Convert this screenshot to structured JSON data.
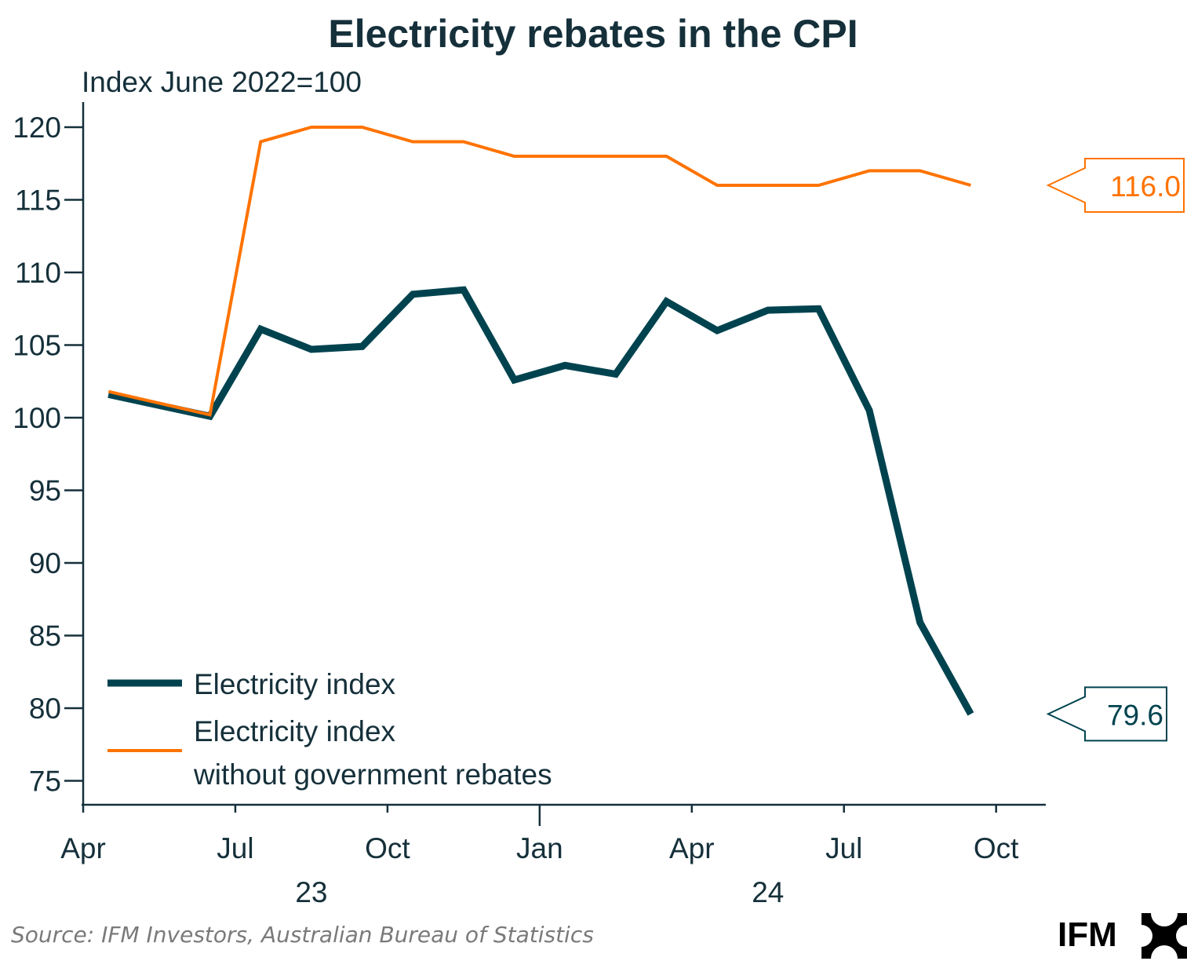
{
  "chart_data": {
    "type": "line",
    "title": "Electricity rebates in the CPI",
    "subtitle": "Index June 2022=100",
    "xlabel": "",
    "ylabel": "Index June 2022=100",
    "ylim": [
      73,
      121.5
    ],
    "yticks": [
      75,
      80,
      85,
      90,
      95,
      100,
      105,
      110,
      115,
      120
    ],
    "xlim_months": [
      0,
      18.5
    ],
    "xticks": [
      {
        "label": "Apr",
        "month": 0,
        "major": false
      },
      {
        "label": "Jul",
        "month": 3,
        "major": false
      },
      {
        "label": "Oct",
        "month": 6,
        "major": false
      },
      {
        "label": "Jan",
        "month": 9,
        "major": true
      },
      {
        "label": "Apr",
        "month": 12,
        "major": false
      },
      {
        "label": "Jul",
        "month": 15,
        "major": false
      },
      {
        "label": "Oct",
        "month": 18,
        "major": false
      }
    ],
    "year_labels": [
      {
        "label": "23",
        "month": 4.5
      },
      {
        "label": "24",
        "month": 13.5
      }
    ],
    "x": [
      "Apr 2023",
      "Jun 2023",
      "Jul 2023",
      "Aug 2023",
      "Sep 2023",
      "Oct 2023",
      "Nov 2023",
      "Dec 2023",
      "Jan 2024",
      "Feb 2024",
      "Mar 2024",
      "Apr 2024",
      "May 2024",
      "Jun 2024",
      "Jul 2024",
      "Aug 2024",
      "Sep 2024"
    ],
    "x_months": [
      0.5,
      2.5,
      3.5,
      4.5,
      5.5,
      6.5,
      7.5,
      8.5,
      9.5,
      10.5,
      11.5,
      12.5,
      13.5,
      14.5,
      15.5,
      16.5,
      17.5
    ],
    "series": [
      {
        "name": "Electricity index",
        "color": "#00434f",
        "values": [
          101.6,
          100.1,
          106.1,
          104.7,
          104.9,
          108.5,
          108.8,
          102.6,
          103.6,
          103.0,
          108.0,
          106.0,
          107.4,
          107.5,
          100.5,
          85.9,
          79.6
        ],
        "end_label": "79.6"
      },
      {
        "name": "Electricity index without government rebates",
        "legend_lines": [
          "Electricity index",
          "without government rebates"
        ],
        "color": "#ff7300",
        "values": [
          101.8,
          100.2,
          119.0,
          120.0,
          120.0,
          119.0,
          119.0,
          118.0,
          118.0,
          118.0,
          118.0,
          116.0,
          116.0,
          116.0,
          117.0,
          117.0,
          116.0
        ],
        "end_label": "116.0"
      }
    ],
    "legend_position": "bottom-left",
    "grid": false
  },
  "footer": {
    "source": "Source: IFM Investors, Australian Bureau of Statistics",
    "logo_text": "IFM"
  },
  "colors": {
    "axis": "#15303a",
    "teal": "#00434f",
    "orange": "#ff7300",
    "source_text": "#7a7a7a"
  }
}
